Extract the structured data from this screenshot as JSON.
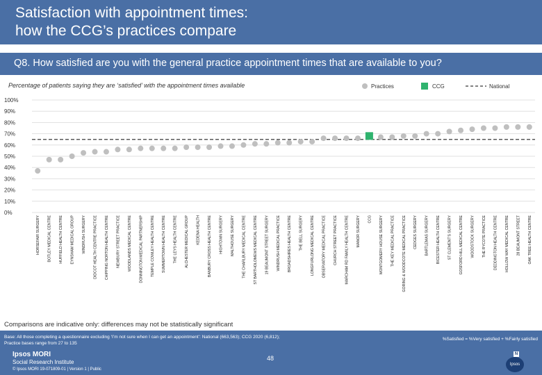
{
  "header": {
    "title_line1": "Satisfaction with appointment times:",
    "title_line2": "how the CCG’s practices compare"
  },
  "question": "Q8. How satisfied are you with the general practice appointment times that are available to you?",
  "subtitle": "Percentage of patients saying they are ‘satisfied’ with the appointment times available",
  "legend": {
    "practices": "Practices",
    "ccg": "CCG",
    "national": "National"
  },
  "colors": {
    "header": "#4a6fa5",
    "practice": "#bfbfbf",
    "ccg": "#2fb36e",
    "national": "#595959",
    "grid": "#d9d9d9"
  },
  "chart_data": {
    "type": "scatter",
    "title": "Percentage of patients saying they are ‘satisfied’ with the appointment times available",
    "ylim": [
      0,
      100
    ],
    "yticks": [
      0,
      10,
      20,
      30,
      40,
      50,
      60,
      70,
      80,
      90,
      100
    ],
    "ytick_labels": [
      "0%",
      "10%",
      "20%",
      "30%",
      "40%",
      "50%",
      "60%",
      "70%",
      "80%",
      "90%",
      "100%"
    ],
    "national": 65,
    "ccg_category": "CCG",
    "categories": [
      "HORSEFAIR SURGERY",
      "BOTLEY MEDICAL CENTRE",
      "HUFFIELD HEALTH CENTRE",
      "EYNSHAM MEDICAL GROUP",
      "WINDRUSH SURGERY",
      "DIDCOT HEALTH CENTRE PRACTICE",
      "CHIPPING NORTON HEALTH CENTRE",
      "NEWBURY STREET PRACTICE",
      "WOODLANDS MEDICAL CENTRE",
      "DONNINGTON MEDICAL PARTNERSHIP",
      "TEMPLE COWLEY HEALTH CENTRE",
      "SUMMERTOWN HEALTH CENTRE",
      "THE LEYS HEALTH CENTRE",
      "ALCHESTER MEDICAL GROUP",
      "KEDENA HEALTH",
      "BANBURY CROSS HEALTH CENTRE",
      "HIGHTOWN SURGERY",
      "MALTHOUSE SURGERY",
      "THE CHARLBURY MEDICAL CENTRE",
      "ST BARTHOLOMEWS MEDICAL CENTRE",
      "19 BEAUMONT STREET SURGERY",
      "WINDRUSH MEDICAL PRACTICE",
      "BROADSHIRES HEALTH CENTRE",
      "THE BELL SURGERY",
      "LONGFURLONG MEDICAL CENTRE",
      "OBSERVATORY MEDICAL PRACTICE",
      "CHURCH STREET PRACTICE",
      "MARCHAM RD FAMILY HEALTH CENTRE",
      "MANOR SURGERY",
      "CCG",
      "MONTGOMERY HOUSE SURGERY",
      "THE KEY MEDICAL PRACTICE",
      "GORING & WOODCOTE MEDICAL PRACTICE",
      "CEDGES SURGERY",
      "BARTLEMAS SURGERY",
      "BICESTER HEALTH CENTRE",
      "ST CLEMENT'S SURGERY",
      "GOSFORD HILL MEDICAL CENTRE",
      "WOODSTOCK SURGERY",
      "THE RYCOTE PRACTICE",
      "DEDDINGTON HEALTH CENTRE",
      "HOLLOW WAY MEDICAL CENTRE",
      "28 BEAUMONT STREET",
      "OAK TREE HEALTH CENTRE"
    ],
    "values": [
      37,
      47,
      47,
      50,
      53,
      54,
      54,
      56,
      56,
      57,
      57,
      57,
      57,
      58,
      58,
      58,
      59,
      59,
      60,
      61,
      61,
      62,
      62,
      63,
      63,
      66,
      66,
      66,
      66,
      68,
      67,
      67,
      68,
      68,
      70,
      70,
      72,
      73,
      74,
      75,
      75,
      76,
      76,
      76
    ]
  },
  "note": "Comparisons are indicative only: differences may not be statistically significant",
  "footer": {
    "base_line1": "Base: All those completing a questionnaire excluding ‘I’m not sure when I can get an appointment’: National (663,563); CCG 2020 (6,812);",
    "base_line2": "Practice bases range from 27 to 135",
    "definition": "%Satisfied = %Very satisfied + %Fairly satisfied",
    "page": "48",
    "logo_line1": "Ipsos MORI",
    "logo_line2": "Social Research Institute",
    "copyright": "© Ipsos MORI    19-071809-01 | Version 1 | Public",
    "ipsos_label": "Ipsos",
    "nhs_label": "N"
  }
}
